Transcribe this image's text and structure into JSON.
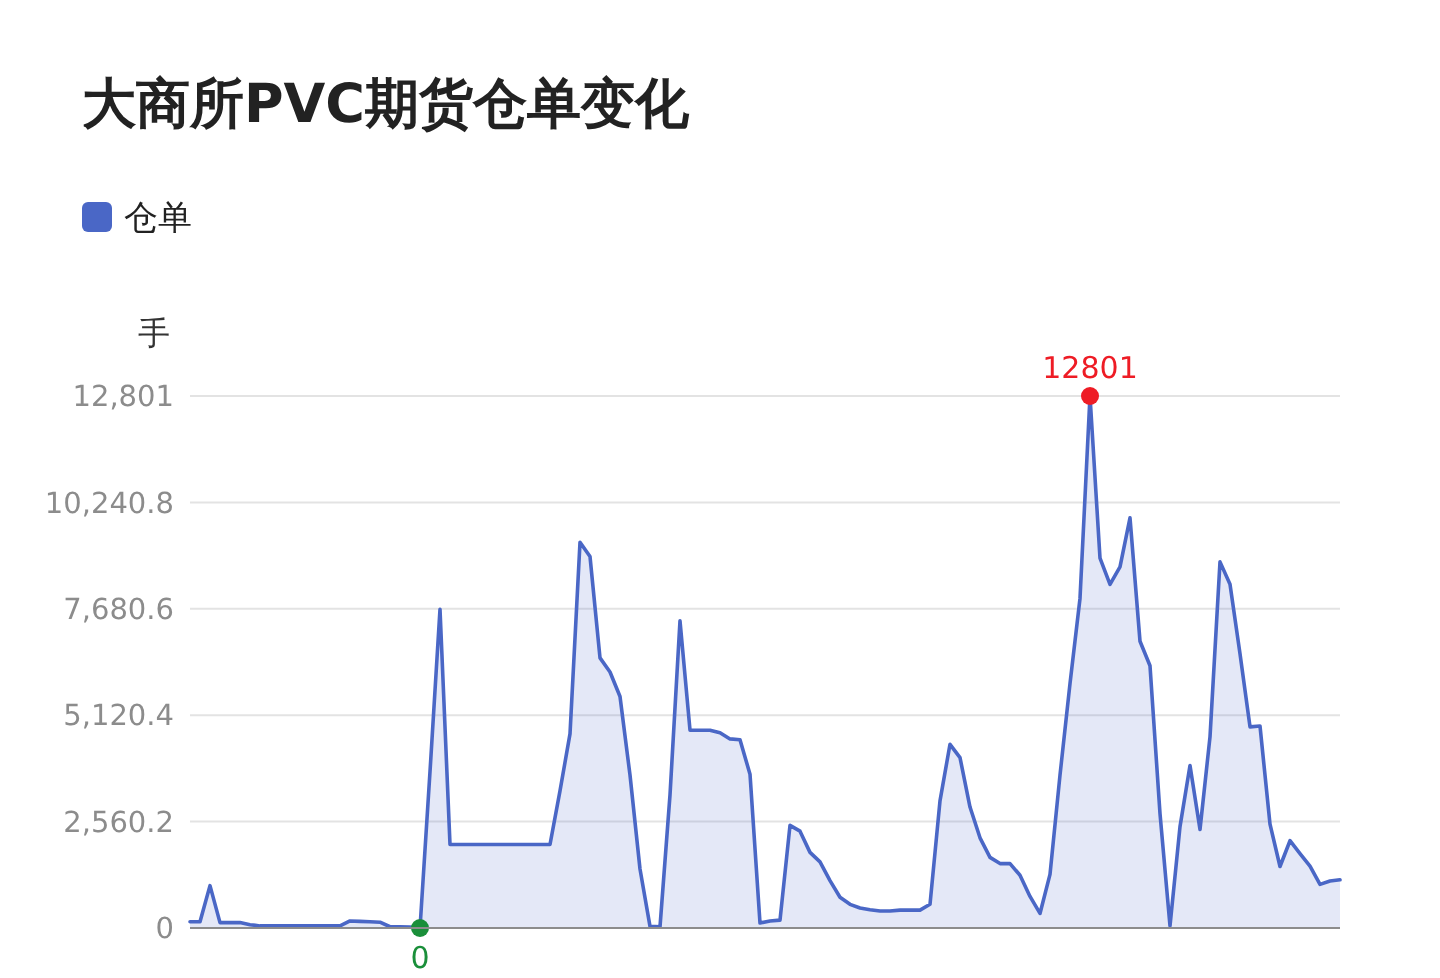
{
  "chart_data": {
    "type": "area",
    "title": "大商所PVC期货仓单变化",
    "ylabel": "手",
    "legend": "top left",
    "grid": "y",
    "ylim": [
      0,
      12801
    ],
    "yticks": [
      0,
      {
        "value": 2560.2,
        "label": "2,560.2"
      },
      {
        "value": 5120.4,
        "label": "5,120.4"
      },
      {
        "value": 7680.6,
        "label": "7,680.6"
      },
      {
        "value": 10240.8,
        "label": "10,240.8"
      },
      {
        "value": 12801,
        "label": "12,801"
      }
    ],
    "categories": [
      null,
      null,
      null,
      null,
      null,
      null,
      null,
      null,
      null,
      null,
      null,
      null,
      null,
      null,
      null,
      null,
      null,
      null,
      null,
      null,
      null,
      null,
      null,
      null,
      null,
      null,
      null,
      null,
      null,
      null,
      null,
      null,
      null,
      null,
      null,
      null,
      null,
      null,
      null,
      null,
      null,
      null,
      null,
      null,
      null,
      null,
      null,
      null,
      null,
      null,
      null,
      null,
      null,
      null,
      null,
      null,
      null,
      null,
      null,
      null,
      null,
      null,
      null,
      null,
      null,
      null,
      null,
      null,
      null,
      null,
      null,
      null,
      null,
      null,
      null,
      null,
      null,
      null,
      null,
      null,
      null,
      null,
      null,
      null,
      null,
      null,
      null,
      null,
      null,
      null,
      null,
      null,
      null,
      null,
      null,
      null,
      null,
      null,
      null,
      null,
      null,
      null,
      null,
      null,
      null,
      null,
      null,
      null,
      null,
      null,
      null,
      null,
      null,
      null,
      null,
      null
    ],
    "series": [
      {
        "name": "仓单",
        "color": "#4a67c6",
        "values": [
          150,
          150,
          1020,
          130,
          130,
          130,
          80,
          50,
          50,
          50,
          50,
          50,
          50,
          50,
          50,
          50,
          170,
          160,
          150,
          140,
          30,
          30,
          20,
          0,
          3760,
          7670,
          2010,
          2010,
          2010,
          2010,
          2010,
          2010,
          2010,
          2010,
          2010,
          2010,
          2010,
          3300,
          4670,
          9280,
          8940,
          6500,
          6160,
          5570,
          3680,
          1420,
          40,
          30,
          3200,
          7390,
          4760,
          4760,
          4760,
          4700,
          4550,
          4530,
          3700,
          120,
          170,
          190,
          2470,
          2330,
          1820,
          1590,
          1140,
          740,
          570,
          480,
          440,
          410,
          410,
          430,
          430,
          430,
          570,
          3060,
          4420,
          4100,
          2910,
          2170,
          1700,
          1550,
          1550,
          1270,
          760,
          350,
          1290,
          3680,
          5880,
          7930,
          12801,
          8900,
          8270,
          8690,
          9870,
          6900,
          6310,
          2750,
          50,
          2440,
          3910,
          2370,
          4600,
          8810,
          8270,
          6600,
          4840,
          4860,
          2500,
          1480,
          2100,
          1790,
          1490,
          1050,
          1130,
          1160
        ]
      },
      {
        "type": "scatter",
        "color": "#ee1c25",
        "values": [
          null,
          null,
          null,
          null,
          null,
          null,
          null,
          null,
          null,
          null,
          null,
          null,
          null,
          null,
          null,
          null,
          null,
          null,
          null,
          null,
          null,
          null,
          null,
          null,
          null,
          null,
          null,
          null,
          null,
          null,
          null,
          null,
          null,
          null,
          null,
          null,
          null,
          null,
          null,
          null,
          null,
          null,
          null,
          null,
          null,
          null,
          null,
          null,
          null,
          null,
          null,
          null,
          null,
          null,
          null,
          null,
          null,
          null,
          null,
          null,
          null,
          null,
          null,
          null,
          null,
          null,
          null,
          null,
          null,
          null,
          null,
          null,
          null,
          null,
          null,
          null,
          null,
          null,
          null,
          null,
          null,
          null,
          null,
          null,
          null,
          null,
          null,
          null,
          null,
          null,
          12801,
          null,
          null,
          null,
          null,
          null,
          null,
          null,
          null,
          null,
          null,
          null,
          null,
          null,
          null,
          null,
          null,
          null,
          null,
          null,
          null,
          null,
          null,
          null,
          null,
          null
        ],
        "value_labels": [
          null,
          null,
          null,
          null,
          null,
          null,
          null,
          null,
          null,
          null,
          null,
          null,
          null,
          null,
          null,
          null,
          null,
          null,
          null,
          null,
          null,
          null,
          null,
          null,
          null,
          null,
          null,
          null,
          null,
          null,
          null,
          null,
          null,
          null,
          null,
          null,
          null,
          null,
          null,
          null,
          null,
          null,
          null,
          null,
          null,
          null,
          null,
          null,
          null,
          null,
          null,
          null,
          null,
          null,
          null,
          null,
          null,
          null,
          null,
          null,
          null,
          null,
          null,
          null,
          null,
          null,
          null,
          null,
          null,
          null,
          null,
          null,
          null,
          null,
          null,
          null,
          null,
          null,
          null,
          null,
          null,
          null,
          null,
          null,
          null,
          null,
          null,
          null,
          null,
          null,
          "12801",
          null,
          null,
          null,
          null,
          null,
          null,
          null,
          null,
          null,
          null,
          null,
          null,
          null,
          null,
          null,
          null,
          null,
          null,
          null,
          null,
          null,
          null,
          null,
          null,
          null
        ]
      },
      {
        "type": "scatter",
        "color": "#1a8f3a",
        "values": [
          null,
          null,
          null,
          null,
          null,
          null,
          null,
          null,
          null,
          null,
          null,
          null,
          null,
          null,
          null,
          null,
          null,
          null,
          null,
          null,
          null,
          null,
          null,
          0,
          null,
          null,
          null,
          null,
          null,
          null,
          null,
          null,
          null,
          null,
          null,
          null,
          null,
          null,
          null,
          null,
          null,
          null,
          null,
          null,
          null,
          null,
          null,
          null,
          null,
          null,
          null,
          null,
          null,
          null,
          null,
          null,
          null,
          null,
          null,
          null,
          null,
          null,
          null,
          null,
          null,
          null,
          null,
          null,
          null,
          null,
          null,
          null,
          null,
          null,
          null,
          null,
          null,
          null,
          null,
          null,
          null,
          null,
          null,
          null,
          null,
          null,
          null,
          null,
          null,
          null,
          null,
          null,
          null,
          null,
          null,
          null,
          null,
          null,
          null,
          null,
          null,
          null,
          null,
          null,
          null,
          null,
          null,
          null,
          null,
          null,
          null,
          null,
          null,
          null,
          null,
          null
        ],
        "value_labels": [
          null,
          null,
          null,
          null,
          null,
          null,
          null,
          null,
          null,
          null,
          null,
          null,
          null,
          null,
          null,
          null,
          null,
          null,
          null,
          null,
          null,
          null,
          null,
          "0",
          null,
          null,
          null,
          null,
          null,
          null,
          null,
          null,
          null,
          null,
          null,
          null,
          null,
          null,
          null,
          null,
          null,
          null,
          null,
          null,
          null,
          null,
          null,
          null,
          null,
          null,
          null,
          null,
          null,
          null,
          null,
          null,
          null,
          null,
          null,
          null,
          null,
          null,
          null,
          null,
          null,
          null,
          null,
          null,
          null,
          null,
          null,
          null,
          null,
          null,
          null,
          null,
          null,
          null,
          null,
          null,
          null,
          null,
          null,
          null,
          null,
          null,
          null,
          null,
          null,
          null,
          null,
          null,
          null,
          null,
          null,
          null,
          null,
          null,
          null,
          null,
          null,
          null,
          null,
          null,
          null,
          null,
          null,
          null,
          null,
          null,
          null,
          null,
          null,
          null,
          null,
          null
        ]
      }
    ]
  }
}
